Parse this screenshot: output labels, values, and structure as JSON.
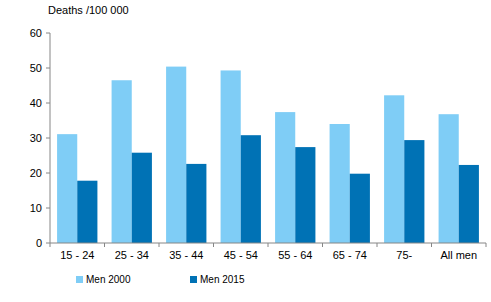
{
  "chart_data": {
    "type": "bar",
    "y_label": "Deaths /100 000",
    "categories": [
      "15 - 24",
      "25 - 34",
      "35 - 44",
      "45 - 54",
      "55 - 64",
      "65 - 74",
      "75-",
      "All men"
    ],
    "series": [
      {
        "name": "Men 2000",
        "color": "#7fcdf6",
        "values": [
          31.1,
          46.5,
          50.4,
          49.3,
          37.4,
          34.0,
          42.2,
          36.8
        ]
      },
      {
        "name": "Men 2015",
        "color": "#0072b5",
        "values": [
          17.8,
          25.8,
          22.6,
          30.8,
          27.4,
          19.8,
          29.4,
          22.3
        ]
      }
    ],
    "ylim": [
      0,
      60
    ],
    "yticks": [
      0,
      10,
      20,
      30,
      40,
      50,
      60
    ],
    "grid": false,
    "legend": "bottom-left"
  }
}
